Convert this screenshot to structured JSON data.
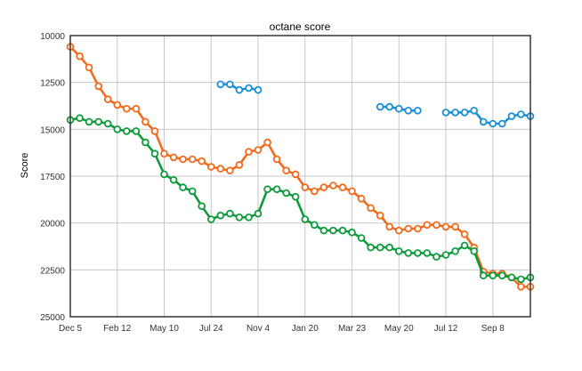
{
  "chart_data": {
    "type": "line",
    "title": "octane score",
    "xlabel": "",
    "ylabel": "Score",
    "y_axis_inverted": true,
    "ylim": [
      10000,
      25000
    ],
    "yticks": [
      10000,
      12500,
      15000,
      17500,
      20000,
      22500,
      25000
    ],
    "ytick_labels": [
      "10000",
      "12500",
      "15000",
      "17500",
      "20000",
      "22500",
      "25000"
    ],
    "xlim": [
      0,
      49
    ],
    "xticks": [
      0,
      5,
      10,
      15,
      20,
      25,
      30,
      35,
      40,
      45
    ],
    "xtick_labels": [
      "Dec 5",
      "Feb 12",
      "May 10",
      "Jul 24",
      "Nov 4",
      "Jan 20",
      "Mar 23",
      "May 20",
      "Jul 12",
      "Sep 8"
    ],
    "grid": true,
    "colors": {
      "grid": "#c8c8c8",
      "axis": "#333333",
      "series_orange": "#f26a1b",
      "series_green": "#0f9a3c",
      "series_blue": "#1b8fd6"
    },
    "series": [
      {
        "color": "orange",
        "points": [
          [
            0,
            10600
          ],
          [
            1,
            11100
          ],
          [
            2,
            11700
          ],
          [
            3,
            12700
          ],
          [
            4,
            13400
          ],
          [
            5,
            13700
          ],
          [
            6,
            13900
          ],
          [
            7,
            13900
          ],
          [
            8,
            14600
          ],
          [
            9,
            15100
          ],
          [
            10,
            16300
          ],
          [
            11,
            16500
          ],
          [
            12,
            16600
          ],
          [
            13,
            16600
          ],
          [
            14,
            16700
          ],
          [
            15,
            17000
          ],
          [
            16,
            17100
          ],
          [
            17,
            17200
          ],
          [
            18,
            16900
          ],
          [
            19,
            16200
          ],
          [
            20,
            16100
          ],
          [
            21,
            15700
          ],
          [
            22,
            16600
          ],
          [
            23,
            17200
          ],
          [
            24,
            17400
          ],
          [
            25,
            18100
          ],
          [
            26,
            18300
          ],
          [
            27,
            18100
          ],
          [
            28,
            18000
          ],
          [
            29,
            18100
          ],
          [
            30,
            18300
          ],
          [
            31,
            18700
          ],
          [
            32,
            19200
          ],
          [
            33,
            19600
          ],
          [
            34,
            20200
          ],
          [
            35,
            20400
          ],
          [
            36,
            20300
          ],
          [
            37,
            20300
          ],
          [
            38,
            20100
          ],
          [
            39,
            20100
          ],
          [
            40,
            20200
          ],
          [
            41,
            20200
          ],
          [
            42,
            20600
          ],
          [
            43,
            21300
          ],
          [
            44,
            22600
          ],
          [
            45,
            22700
          ],
          [
            46,
            22700
          ],
          [
            47,
            22900
          ],
          [
            48,
            23400
          ],
          [
            49,
            23400
          ]
        ]
      },
      {
        "color": "green",
        "points": [
          [
            0,
            14500
          ],
          [
            1,
            14400
          ],
          [
            2,
            14600
          ],
          [
            3,
            14600
          ],
          [
            4,
            14700
          ],
          [
            5,
            15000
          ],
          [
            6,
            15100
          ],
          [
            7,
            15100
          ],
          [
            8,
            15700
          ],
          [
            9,
            16300
          ],
          [
            10,
            17400
          ],
          [
            11,
            17700
          ],
          [
            12,
            18100
          ],
          [
            13,
            18300
          ],
          [
            14,
            19100
          ],
          [
            15,
            19800
          ],
          [
            16,
            19600
          ],
          [
            17,
            19500
          ],
          [
            18,
            19700
          ],
          [
            19,
            19700
          ],
          [
            20,
            19500
          ],
          [
            21,
            18200
          ],
          [
            22,
            18200
          ],
          [
            23,
            18400
          ],
          [
            24,
            18600
          ],
          [
            25,
            19800
          ],
          [
            26,
            20100
          ],
          [
            27,
            20400
          ],
          [
            28,
            20400
          ],
          [
            29,
            20400
          ],
          [
            30,
            20500
          ],
          [
            31,
            20800
          ],
          [
            32,
            21300
          ],
          [
            33,
            21300
          ],
          [
            34,
            21300
          ],
          [
            35,
            21500
          ],
          [
            36,
            21600
          ],
          [
            37,
            21600
          ],
          [
            38,
            21600
          ],
          [
            39,
            21800
          ],
          [
            40,
            21700
          ],
          [
            41,
            21500
          ],
          [
            42,
            21200
          ],
          [
            43,
            21500
          ],
          [
            44,
            22800
          ],
          [
            45,
            22800
          ],
          [
            46,
            22800
          ],
          [
            47,
            22900
          ],
          [
            48,
            23000
          ],
          [
            49,
            22900
          ]
        ]
      },
      {
        "color": "blue",
        "segments": [
          [
            [
              16,
              12600
            ],
            [
              17,
              12600
            ],
            [
              18,
              12900
            ],
            [
              19,
              12800
            ],
            [
              20,
              12900
            ]
          ],
          [
            [
              33,
              13800
            ],
            [
              34,
              13800
            ],
            [
              35,
              13900
            ],
            [
              36,
              14000
            ],
            [
              37,
              14000
            ]
          ],
          [
            [
              40,
              14100
            ],
            [
              41,
              14100
            ],
            [
              42,
              14100
            ],
            [
              43,
              14000
            ],
            [
              44,
              14600
            ],
            [
              45,
              14700
            ],
            [
              46,
              14700
            ],
            [
              47,
              14300
            ],
            [
              48,
              14200
            ],
            [
              49,
              14300
            ]
          ]
        ]
      }
    ]
  }
}
